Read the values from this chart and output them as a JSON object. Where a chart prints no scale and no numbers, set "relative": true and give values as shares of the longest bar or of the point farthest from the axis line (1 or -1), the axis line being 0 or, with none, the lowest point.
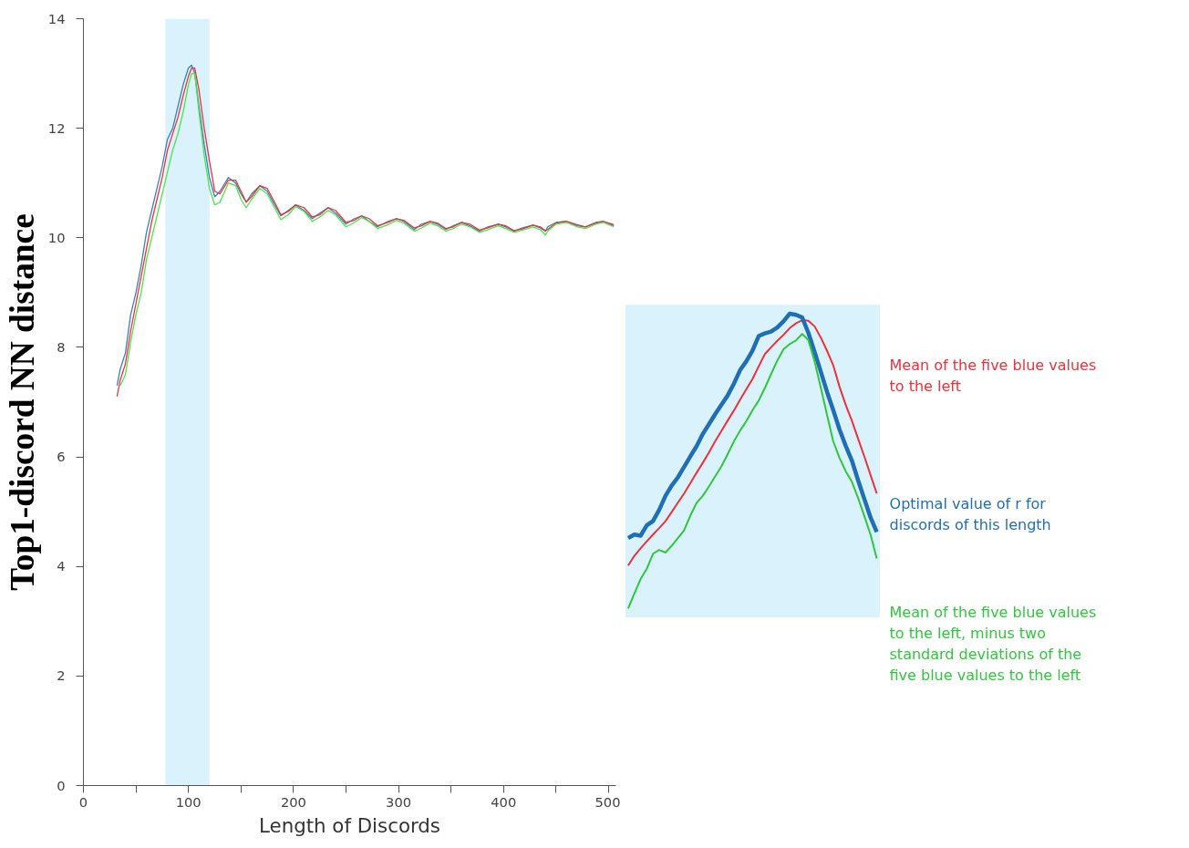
{
  "chart_data": [
    {
      "type": "line",
      "xlabel": "Length of Discords",
      "ylabel": "Top1-discord NN distance",
      "xlim": [
        0,
        507
      ],
      "ylim": [
        0,
        14
      ],
      "xticks": [
        0,
        {
          "value": 50,
          "label": null
        },
        100,
        {
          "value": 150,
          "label": null
        },
        200,
        {
          "value": 250,
          "label": null
        },
        300,
        {
          "value": 350,
          "label": null
        },
        400,
        {
          "value": 450,
          "label": null
        },
        500
      ],
      "yticks": [
        0,
        2,
        4,
        6,
        8,
        10,
        12,
        14
      ],
      "x": [
        32,
        35,
        40,
        45,
        50,
        55,
        60,
        65,
        70,
        75,
        80,
        85,
        90,
        95,
        100,
        103,
        106,
        110,
        115,
        120,
        125,
        130,
        138,
        145,
        150,
        155,
        160,
        168,
        175,
        182,
        188,
        195,
        202,
        210,
        218,
        225,
        233,
        240,
        250,
        258,
        265,
        272,
        280,
        290,
        298,
        305,
        315,
        322,
        330,
        337,
        345,
        352,
        360,
        368,
        377,
        385,
        395,
        402,
        410,
        418,
        428,
        435,
        440,
        442,
        450,
        460,
        470,
        478,
        488,
        495,
        505
      ],
      "series": [
        {
          "color": "#3a7fc1",
          "values": [
            7.3,
            7.6,
            7.9,
            8.6,
            9.0,
            9.5,
            10.1,
            10.5,
            10.9,
            11.3,
            11.8,
            12.0,
            12.4,
            12.8,
            13.1,
            13.15,
            13.0,
            12.4,
            11.7,
            11.1,
            10.75,
            10.85,
            11.1,
            11.0,
            10.8,
            10.65,
            10.8,
            10.95,
            10.85,
            10.6,
            10.4,
            10.5,
            10.6,
            10.5,
            10.35,
            10.45,
            10.55,
            10.45,
            10.25,
            10.35,
            10.4,
            10.3,
            10.2,
            10.3,
            10.35,
            10.3,
            10.15,
            10.25,
            10.3,
            10.25,
            10.15,
            10.22,
            10.28,
            10.22,
            10.12,
            10.2,
            10.25,
            10.2,
            10.12,
            10.18,
            10.23,
            10.18,
            10.12,
            10.2,
            10.28,
            10.3,
            10.22,
            10.2,
            10.28,
            10.3,
            10.22
          ]
        },
        {
          "color": "#f0303a",
          "values": [
            7.1,
            7.4,
            7.7,
            8.3,
            8.8,
            9.3,
            9.8,
            10.3,
            10.7,
            11.1,
            11.6,
            11.9,
            12.2,
            12.6,
            12.95,
            13.1,
            13.1,
            12.7,
            12.0,
            11.4,
            10.85,
            10.8,
            11.05,
            11.05,
            10.85,
            10.65,
            10.75,
            10.95,
            10.9,
            10.65,
            10.42,
            10.48,
            10.6,
            10.55,
            10.38,
            10.42,
            10.55,
            10.5,
            10.28,
            10.32,
            10.4,
            10.35,
            10.22,
            10.28,
            10.35,
            10.32,
            10.18,
            10.22,
            10.3,
            10.27,
            10.17,
            10.2,
            10.28,
            10.25,
            10.14,
            10.18,
            10.25,
            10.22,
            10.13,
            10.16,
            10.23,
            10.2,
            10.13,
            10.15,
            10.27,
            10.3,
            10.24,
            10.2,
            10.27,
            10.3,
            10.24
          ]
        },
        {
          "color": "#45e845",
          "values": [
            null,
            7.3,
            7.5,
            8.1,
            8.6,
            9.0,
            9.6,
            10.0,
            10.4,
            10.8,
            11.2,
            11.6,
            11.9,
            12.3,
            12.8,
            13.0,
            13.0,
            12.3,
            11.5,
            10.9,
            10.6,
            10.65,
            11.0,
            10.95,
            10.7,
            10.55,
            10.7,
            10.9,
            10.8,
            10.55,
            10.33,
            10.42,
            10.57,
            10.48,
            10.3,
            10.38,
            10.5,
            10.42,
            10.2,
            10.28,
            10.37,
            10.3,
            10.17,
            10.24,
            10.32,
            10.27,
            10.12,
            10.18,
            10.27,
            10.22,
            10.12,
            10.17,
            10.25,
            10.2,
            10.1,
            10.15,
            10.22,
            10.17,
            10.1,
            10.14,
            10.2,
            10.15,
            10.05,
            10.12,
            10.25,
            10.28,
            10.2,
            10.17,
            10.25,
            10.28,
            10.2
          ]
        }
      ],
      "bands": [
        {
          "axis": "x",
          "from": 78,
          "to": 120,
          "color": "#d9f2fb"
        }
      ],
      "grid": false,
      "legend": false
    },
    {
      "type": "line",
      "relative": true,
      "tick_labels": false,
      "grid": false,
      "legend": false,
      "categories": [
        null,
        null,
        null,
        null,
        null,
        null,
        null,
        null,
        null,
        null,
        null,
        null,
        null,
        null,
        null,
        null,
        null,
        null,
        null,
        null,
        null,
        null,
        null,
        null,
        null,
        null,
        null,
        null,
        null,
        null,
        null,
        null,
        null,
        null,
        null,
        null,
        null,
        null,
        null,
        null,
        null
      ],
      "series": [
        {
          "name": "Mean of the five blue values to the left",
          "color": "#f0303a",
          "values": [
            0.146,
            0.179,
            0.204,
            0.228,
            0.251,
            0.273,
            0.296,
            0.327,
            0.359,
            0.39,
            0.425,
            0.46,
            0.494,
            0.529,
            0.567,
            0.602,
            0.637,
            0.671,
            0.708,
            0.743,
            0.778,
            0.821,
            0.863,
            0.886,
            0.908,
            0.928,
            0.951,
            0.967,
            0.978,
            0.976,
            0.957,
            0.919,
            0.874,
            0.825,
            0.753,
            0.691,
            0.637,
            0.576,
            0.516,
            0.453,
            0.39
          ]
        },
        {
          "name": "Optimal value of r for discords of this length",
          "color": "#1f6fb5",
          "values": [
            0.239,
            0.251,
            0.247,
            0.282,
            0.297,
            0.335,
            0.382,
            0.417,
            0.445,
            0.48,
            0.516,
            0.55,
            0.592,
            0.625,
            0.659,
            0.691,
            0.722,
            0.762,
            0.808,
            0.838,
            0.874,
            0.924,
            0.933,
            0.939,
            0.953,
            0.974,
            1,
            0.996,
            0.987,
            0.935,
            0.87,
            0.803,
            0.735,
            0.673,
            0.608,
            0.552,
            0.502,
            0.435,
            0.372,
            0.309,
            0.26
          ]
        },
        {
          "name": "Mean of the five blue values to the left, minus two standard deviations of the five blue values to the left",
          "color": "#2fc83c",
          "values": [
            0,
            0.051,
            0.1,
            0.135,
            0.186,
            0.199,
            0.19,
            0.213,
            0.239,
            0.265,
            0.315,
            0.358,
            0.382,
            0.414,
            0.448,
            0.482,
            0.523,
            0.566,
            0.603,
            0.635,
            0.672,
            0.705,
            0.748,
            0.795,
            0.841,
            0.879,
            0.897,
            0.909,
            0.931,
            0.91,
            0.838,
            0.749,
            0.657,
            0.567,
            0.511,
            0.466,
            0.43,
            0.375,
            0.314,
            0.251,
            0.17
          ]
        }
      ]
    }
  ]
}
